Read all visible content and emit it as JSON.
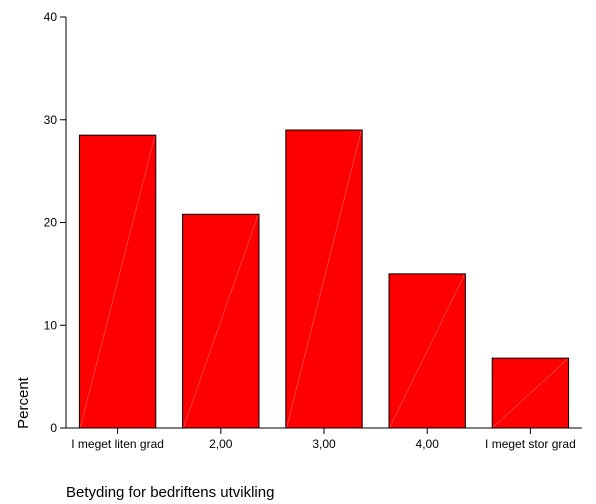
{
  "chart_data": {
    "type": "bar",
    "categories": [
      "I meget liten grad",
      "2,00",
      "3,00",
      "4,00",
      "I meget stor grad"
    ],
    "values": [
      28.5,
      20.8,
      29.0,
      15.0,
      6.8
    ],
    "xlabel": "Betyding for bedriftens utvikling",
    "ylabel": "Percent",
    "ylim": [
      0,
      40
    ],
    "yticks": [
      0,
      10,
      20,
      30,
      40
    ],
    "bar_color": "#ff0000",
    "grid": false
  }
}
